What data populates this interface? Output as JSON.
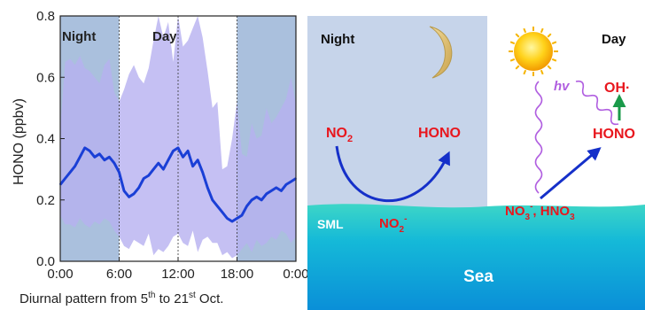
{
  "chart_data": {
    "type": "line",
    "xlabel_main": "Diurnal pattern from 5",
    "xlabel_sup1": "th",
    "xlabel_mid": " to 21",
    "xlabel_sup2": "st",
    "xlabel_end": " Oct.",
    "ylabel": "HONO (ppbv)",
    "xlim": [
      0,
      24
    ],
    "ylim": [
      0,
      0.8
    ],
    "x_ticks": [
      0,
      6,
      12,
      18,
      24
    ],
    "x_tick_labels": [
      "0:00",
      "6:00",
      "12:00",
      "18:00",
      "0:00"
    ],
    "y_ticks": [
      0,
      0.2,
      0.4,
      0.6,
      0.8
    ],
    "y_tick_labels": [
      "0.0",
      "0.2",
      "0.4",
      "0.6",
      "0.8"
    ],
    "regions": [
      {
        "label": "Night",
        "x0": 0,
        "x1": 6,
        "shaded": true
      },
      {
        "label": "Day",
        "x0": 6,
        "x1": 18,
        "shaded": false
      },
      {
        "label": "",
        "x0": 18,
        "x1": 24,
        "shaded": true
      }
    ],
    "series": [
      {
        "x": [
          0,
          0.5,
          1,
          1.5,
          2,
          2.5,
          3,
          3.5,
          4,
          4.5,
          5,
          5.5,
          6,
          6.5,
          7,
          7.5,
          8,
          8.5,
          9,
          9.5,
          10,
          10.5,
          11,
          11.5,
          12,
          12.5,
          13,
          13.5,
          14,
          14.5,
          15,
          15.5,
          16,
          16.5,
          17,
          17.5,
          18,
          18.5,
          19,
          19.5,
          20,
          20.5,
          21,
          21.5,
          22,
          22.5,
          23,
          23.5,
          24
        ],
        "y": [
          0.25,
          0.27,
          0.29,
          0.31,
          0.34,
          0.37,
          0.36,
          0.34,
          0.35,
          0.33,
          0.34,
          0.32,
          0.29,
          0.23,
          0.21,
          0.22,
          0.24,
          0.27,
          0.28,
          0.3,
          0.32,
          0.3,
          0.33,
          0.36,
          0.37,
          0.34,
          0.36,
          0.31,
          0.33,
          0.29,
          0.24,
          0.2,
          0.18,
          0.16,
          0.14,
          0.13,
          0.14,
          0.15,
          0.18,
          0.2,
          0.21,
          0.2,
          0.22,
          0.23,
          0.24,
          0.23,
          0.25,
          0.26,
          0.27
        ],
        "upper": [
          0.43,
          0.65,
          0.66,
          0.64,
          0.67,
          0.63,
          0.62,
          0.6,
          0.58,
          0.64,
          0.66,
          0.55,
          0.52,
          0.56,
          0.61,
          0.64,
          0.6,
          0.58,
          0.63,
          0.72,
          0.8,
          0.73,
          0.78,
          0.65,
          0.8,
          0.7,
          0.72,
          0.76,
          0.8,
          0.73,
          0.62,
          0.5,
          0.52,
          0.3,
          0.31,
          0.4,
          0.52,
          0.35,
          0.34,
          0.45,
          0.4,
          0.41,
          0.5,
          0.45,
          0.47,
          0.5,
          0.53,
          0.6,
          0.51
        ],
        "lower": [
          0.15,
          0.12,
          0.12,
          0.11,
          0.14,
          0.12,
          0.11,
          0.13,
          0.12,
          0.14,
          0.13,
          0.1,
          0.08,
          0.05,
          0.04,
          0.07,
          0.06,
          0.05,
          0.09,
          0.02,
          0.04,
          0.03,
          0.05,
          0.08,
          0.09,
          0.06,
          0.05,
          0.1,
          0.03,
          0.07,
          0.08,
          0.06,
          0.06,
          0.02,
          0.03,
          0.01,
          0.02,
          0.04,
          0.06,
          0.03,
          0.07,
          0.05,
          0.06,
          0.08,
          0.07,
          0.1,
          0.09,
          0.06,
          0.08
        ]
      }
    ],
    "colors": {
      "mean_line": "#1a3fd6",
      "band": "#b7b0f0",
      "night_shade": "#aac0dd",
      "axis": "#222222"
    }
  },
  "scheme": {
    "night_label": "Night",
    "day_label": "Day",
    "no2_main": "NO",
    "no2_sub": "2",
    "hono_left": "HONO",
    "sml_label": "SML",
    "no2m_main": "NO",
    "no2m_sub": "2",
    "no2m_sup": "-",
    "hv_label": "hv",
    "oh_label": "OH·",
    "hono_right": "HONO",
    "no3_main": "NO",
    "no3_sub": "3",
    "no3_sup": "-",
    "no3_tail": ", HNO",
    "no3_tail_sub": "3",
    "sea_label": "Sea",
    "colors": {
      "night_bg": "#c6d4ea",
      "sky_bg": "#ffffff",
      "sea_top": "#3dd6c7",
      "sea_bottom": "#0a8fd8",
      "arrow_blue": "#1530c9",
      "arrow_green": "#1a9a4a",
      "red_text": "#e8161d",
      "hv_color": "#b05ee0",
      "moon": "#e8cd86",
      "sun": "#ffcc00"
    }
  }
}
